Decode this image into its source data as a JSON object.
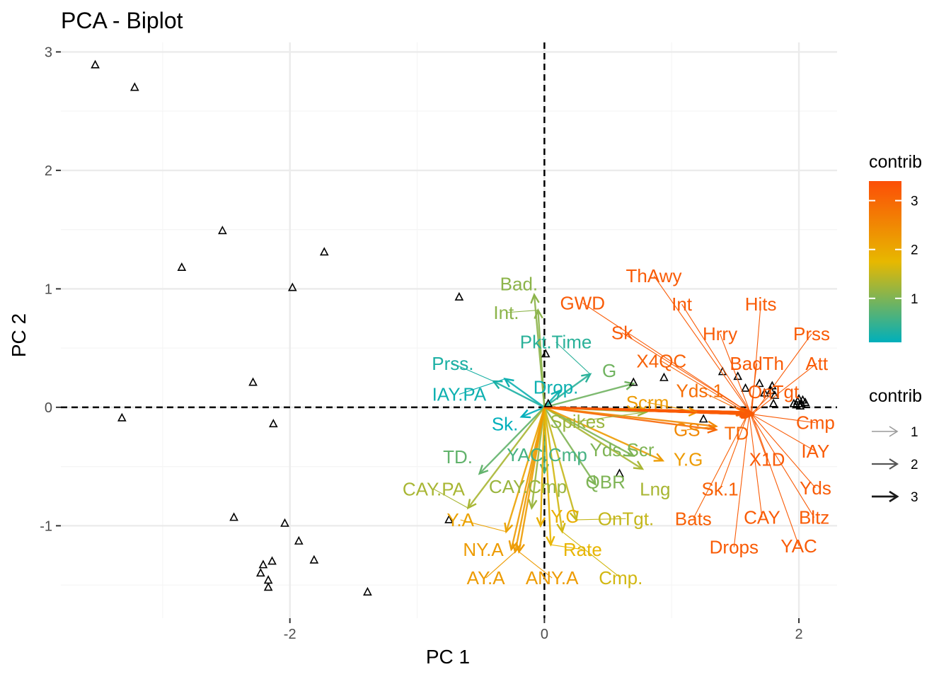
{
  "chart_data": {
    "type": "scatter",
    "subtype": "pca-biplot",
    "title": "PCA - Biplot",
    "xlabel": "PC 1",
    "ylabel": "PC 2",
    "xlim": [
      -3.8,
      2.3
    ],
    "ylim": [
      -1.78,
      3.08
    ],
    "xticks": [
      -2,
      0,
      2
    ],
    "xtick_labels": [
      "-2",
      "0",
      "2"
    ],
    "yticks": [
      -1,
      0,
      1,
      2,
      3
    ],
    "ytick_labels": [
      "-1",
      "0",
      "1",
      "2",
      "3"
    ],
    "grid": true,
    "reference_lines": {
      "x": 0,
      "y": 0,
      "style": "dashed"
    },
    "point_marker": "open-triangle",
    "points": [
      {
        "x": -3.53,
        "y": 2.89
      },
      {
        "x": -3.22,
        "y": 2.7
      },
      {
        "x": -2.53,
        "y": 1.49
      },
      {
        "x": -2.85,
        "y": 1.18
      },
      {
        "x": -1.73,
        "y": 1.31
      },
      {
        "x": -1.98,
        "y": 1.01
      },
      {
        "x": -0.67,
        "y": 0.93
      },
      {
        "x": -2.29,
        "y": 0.21
      },
      {
        "x": -2.13,
        "y": -0.14
      },
      {
        "x": -3.32,
        "y": -0.09
      },
      {
        "x": -2.44,
        "y": -0.93
      },
      {
        "x": -2.04,
        "y": -0.98
      },
      {
        "x": -1.93,
        "y": -1.13
      },
      {
        "x": -1.81,
        "y": -1.29
      },
      {
        "x": -2.14,
        "y": -1.3
      },
      {
        "x": -2.21,
        "y": -1.33
      },
      {
        "x": -2.23,
        "y": -1.4
      },
      {
        "x": -2.17,
        "y": -1.46
      },
      {
        "x": -2.17,
        "y": -1.52
      },
      {
        "x": -1.39,
        "y": -1.56
      },
      {
        "x": -0.75,
        "y": -0.95
      },
      {
        "x": 0.59,
        "y": -0.56
      },
      {
        "x": 0.01,
        "y": 0.45
      },
      {
        "x": 0.03,
        "y": 0.03
      },
      {
        "x": 0.7,
        "y": 0.21
      },
      {
        "x": 0.94,
        "y": 0.25
      },
      {
        "x": 1.25,
        "y": -0.1
      },
      {
        "x": 1.4,
        "y": 0.3
      },
      {
        "x": 1.52,
        "y": 0.26
      },
      {
        "x": 1.58,
        "y": 0.16
      },
      {
        "x": 1.69,
        "y": 0.2
      },
      {
        "x": 1.73,
        "y": 0.12
      },
      {
        "x": 1.78,
        "y": 0.14
      },
      {
        "x": 1.79,
        "y": 0.18
      },
      {
        "x": 1.81,
        "y": 0.1
      },
      {
        "x": 1.8,
        "y": 0.03
      },
      {
        "x": 1.98,
        "y": 0.02
      },
      {
        "x": 1.99,
        "y": 0.05
      },
      {
        "x": 2.0,
        "y": 0.07
      },
      {
        "x": 2.02,
        "y": 0.03
      },
      {
        "x": 2.03,
        "y": 0.06
      },
      {
        "x": 2.05,
        "y": 0.04
      },
      {
        "x": 1.96,
        "y": 0.03
      },
      {
        "x": 2.01,
        "y": 0.01
      }
    ],
    "variables": [
      {
        "name": "ThAwy",
        "x": 1.62,
        "y": -0.05,
        "contrib": 3.2,
        "label_x": 0.86,
        "label_y": 1.11
      },
      {
        "name": "Int",
        "x": 1.62,
        "y": -0.04,
        "contrib": 3.2,
        "label_x": 1.08,
        "label_y": 0.87
      },
      {
        "name": "Hits",
        "x": 1.63,
        "y": -0.05,
        "contrib": 3.2,
        "label_x": 1.7,
        "label_y": 0.87
      },
      {
        "name": "GWD",
        "x": 1.6,
        "y": -0.04,
        "contrib": 3.2,
        "label_x": 0.3,
        "label_y": 0.88
      },
      {
        "name": "Hrry",
        "x": 1.62,
        "y": -0.05,
        "contrib": 3.2,
        "label_x": 1.38,
        "label_y": 0.62
      },
      {
        "name": "Prss",
        "x": 1.64,
        "y": -0.06,
        "contrib": 3.2,
        "label_x": 2.1,
        "label_y": 0.62
      },
      {
        "name": "Sk",
        "x": 1.6,
        "y": -0.04,
        "contrib": 3.2,
        "label_x": 0.61,
        "label_y": 0.63
      },
      {
        "name": "BadTh",
        "x": 1.62,
        "y": -0.05,
        "contrib": 3.2,
        "label_x": 1.67,
        "label_y": 0.37
      },
      {
        "name": "Att",
        "x": 1.64,
        "y": -0.05,
        "contrib": 3.2,
        "label_x": 2.14,
        "label_y": 0.37
      },
      {
        "name": "X4QC",
        "x": 1.58,
        "y": -0.04,
        "contrib": 3.1,
        "label_x": 0.92,
        "label_y": 0.39
      },
      {
        "name": "OnTgt",
        "x": 1.63,
        "y": -0.05,
        "contrib": 3.2,
        "label_x": 1.8,
        "label_y": 0.13
      },
      {
        "name": "Yds.1",
        "x": 1.57,
        "y": -0.04,
        "contrib": 2.9,
        "label_x": 1.22,
        "label_y": 0.14
      },
      {
        "name": "Scrm",
        "x": 1.2,
        "y": -0.04,
        "contrib": 2.2,
        "label_x": 0.81,
        "label_y": 0.04
      },
      {
        "name": "Cmp",
        "x": 1.64,
        "y": -0.06,
        "contrib": 3.2,
        "label_x": 2.13,
        "label_y": -0.13
      },
      {
        "name": "GS",
        "x": 1.35,
        "y": -0.16,
        "contrib": 2.5,
        "label_x": 1.12,
        "label_y": -0.19
      },
      {
        "name": "TD",
        "x": 1.35,
        "y": -0.19,
        "contrib": 3.0,
        "label_x": 1.51,
        "label_y": -0.22
      },
      {
        "name": "IAY",
        "x": 1.63,
        "y": -0.06,
        "contrib": 3.2,
        "label_x": 2.13,
        "label_y": -0.37
      },
      {
        "name": "X1D",
        "x": 1.62,
        "y": -0.06,
        "contrib": 3.2,
        "label_x": 1.75,
        "label_y": -0.44
      },
      {
        "name": "Y.G",
        "x": 0.93,
        "y": -0.45,
        "contrib": 2.2,
        "label_x": 1.13,
        "label_y": -0.44
      },
      {
        "name": "Yds",
        "x": 1.63,
        "y": -0.06,
        "contrib": 3.2,
        "label_x": 2.13,
        "label_y": -0.68
      },
      {
        "name": "Sk.1",
        "x": 1.6,
        "y": -0.05,
        "contrib": 3.1,
        "label_x": 1.38,
        "label_y": -0.69
      },
      {
        "name": "Bats",
        "x": 1.6,
        "y": -0.05,
        "contrib": 3.1,
        "label_x": 1.17,
        "label_y": -0.94
      },
      {
        "name": "CAY",
        "x": 1.61,
        "y": -0.06,
        "contrib": 3.2,
        "label_x": 1.71,
        "label_y": -0.93
      },
      {
        "name": "Bltz",
        "x": 1.62,
        "y": -0.06,
        "contrib": 3.2,
        "label_x": 2.12,
        "label_y": -0.93
      },
      {
        "name": "Drops",
        "x": 1.61,
        "y": -0.05,
        "contrib": 3.2,
        "label_x": 1.49,
        "label_y": -1.18
      },
      {
        "name": "YAC",
        "x": 1.63,
        "y": -0.06,
        "contrib": 3.2,
        "label_x": 2.0,
        "label_y": -1.17
      },
      {
        "name": "Bad.",
        "x": -0.08,
        "y": 0.95,
        "contrib": 1.1,
        "label_x": -0.2,
        "label_y": 1.04
      },
      {
        "name": "Int.",
        "x": -0.05,
        "y": 0.82,
        "contrib": 1.1,
        "label_x": -0.3,
        "label_y": 0.8
      },
      {
        "name": "Pkt.Time",
        "x": 0.36,
        "y": 0.28,
        "contrib": 0.4,
        "label_x": 0.09,
        "label_y": 0.55
      },
      {
        "name": "G",
        "x": 0.7,
        "y": 0.2,
        "contrib": 0.9,
        "label_x": 0.51,
        "label_y": 0.31
      },
      {
        "name": "Prss.",
        "x": -0.4,
        "y": 0.22,
        "contrib": 0.3,
        "label_x": -0.72,
        "label_y": 0.37
      },
      {
        "name": "Drop.",
        "x": 0.12,
        "y": 0.14,
        "contrib": 0.2,
        "label_x": 0.09,
        "label_y": 0.17
      },
      {
        "name": "IAY.PA",
        "x": -0.31,
        "y": 0.24,
        "contrib": 0.2,
        "label_x": -0.67,
        "label_y": 0.11
      },
      {
        "name": "Sk.",
        "x": -0.18,
        "y": -0.08,
        "contrib": 0.1,
        "label_x": -0.31,
        "label_y": -0.14
      },
      {
        "name": "Spikes",
        "x": 0.8,
        "y": -0.04,
        "contrib": 1.2,
        "label_x": 0.26,
        "label_y": -0.12
      },
      {
        "name": "TD.",
        "x": -0.51,
        "y": -0.56,
        "contrib": 0.8,
        "label_x": -0.68,
        "label_y": -0.42
      },
      {
        "name": "YAC.Cmp",
        "x": 0.0,
        "y": -0.55,
        "contrib": 0.6,
        "label_x": 0.02,
        "label_y": -0.4
      },
      {
        "name": "Yds.Scr",
        "x": 0.7,
        "y": -0.41,
        "contrib": 1.0,
        "label_x": 0.61,
        "label_y": -0.36
      },
      {
        "name": "CAY.PA",
        "x": -0.6,
        "y": -0.85,
        "contrib": 1.3,
        "label_x": -0.87,
        "label_y": -0.69
      },
      {
        "name": "CAY.Cmp",
        "x": -0.1,
        "y": -0.85,
        "contrib": 1.2,
        "label_x": -0.13,
        "label_y": -0.67
      },
      {
        "name": "QBR",
        "x": 0.4,
        "y": -0.65,
        "contrib": 1.0,
        "label_x": 0.48,
        "label_y": -0.63
      },
      {
        "name": "Lng",
        "x": 0.77,
        "y": -0.52,
        "contrib": 1.3,
        "label_x": 0.87,
        "label_y": -0.69
      },
      {
        "name": "Y.A",
        "x": -0.3,
        "y": -1.05,
        "contrib": 2.1,
        "label_x": -0.66,
        "label_y": -0.95
      },
      {
        "name": "Y.C",
        "x": -0.03,
        "y": -1.0,
        "contrib": 1.9,
        "label_x": 0.16,
        "label_y": -0.92
      },
      {
        "name": "OnTgt.",
        "x": 0.25,
        "y": -0.95,
        "contrib": 1.5,
        "label_x": 0.64,
        "label_y": -0.94
      },
      {
        "name": "NY.A",
        "x": -0.26,
        "y": -1.2,
        "contrib": 2.2,
        "label_x": -0.48,
        "label_y": -1.2
      },
      {
        "name": "Rate",
        "x": 0.05,
        "y": -1.16,
        "contrib": 1.8,
        "label_x": 0.3,
        "label_y": -1.2
      },
      {
        "name": "AY.A",
        "x": -0.23,
        "y": -1.22,
        "contrib": 2.2,
        "label_x": -0.46,
        "label_y": -1.44
      },
      {
        "name": "ANY.A",
        "x": -0.2,
        "y": -1.22,
        "contrib": 2.2,
        "label_x": 0.06,
        "label_y": -1.44
      },
      {
        "name": "Cmp.",
        "x": 0.14,
        "y": -1.05,
        "contrib": 1.6,
        "label_x": 0.6,
        "label_y": -1.44
      }
    ],
    "legend_color": {
      "title": "contrib",
      "ticks": [
        1,
        2,
        3
      ],
      "range": [
        0.1,
        3.4
      ],
      "placement": "right"
    },
    "legend_size": {
      "title": "contrib",
      "entries": [
        "1",
        "2",
        "3"
      ],
      "placement": "right"
    },
    "colors": {
      "low": "#00AFBB",
      "mid": "#E7B800",
      "high": "#FC4E07",
      "grid_major": "#EBEBEB",
      "grid_minor": "#F5F5F5"
    }
  }
}
